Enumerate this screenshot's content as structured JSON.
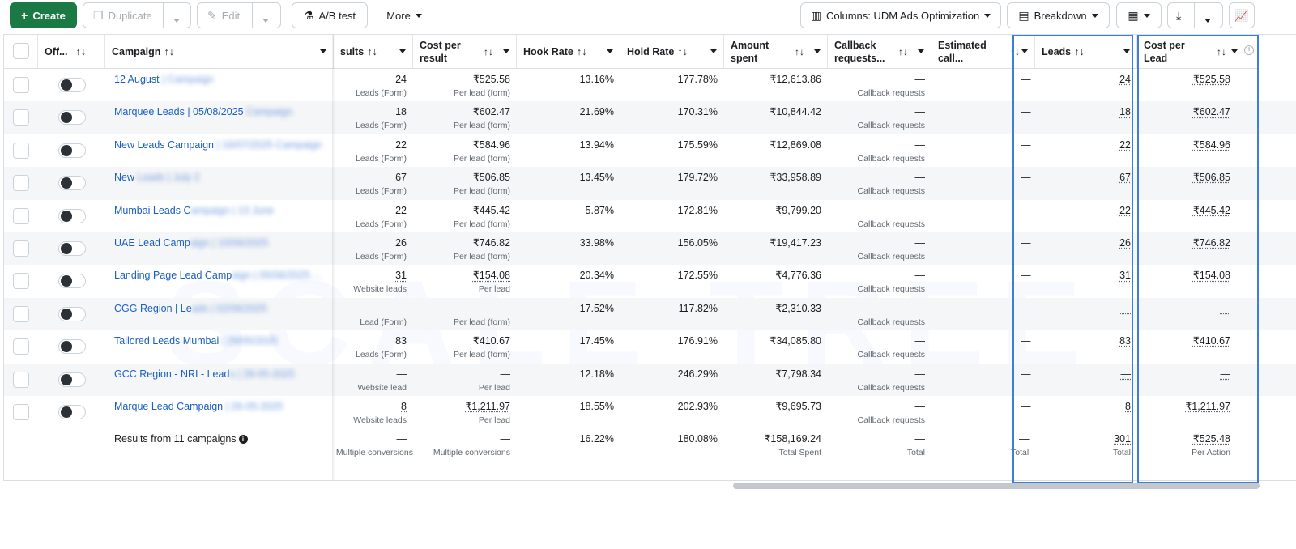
{
  "toolbar": {
    "create_label": "Create",
    "duplicate_label": "Duplicate",
    "edit_label": "Edit",
    "ab_test_label": "A/B test",
    "more_label": "More",
    "columns_label": "Columns: UDM Ads Optimization",
    "breakdown_label": "Breakdown"
  },
  "headers": {
    "off": "Off...",
    "campaign": "Campaign",
    "results": "sults",
    "cost_per_result": "Cost per result",
    "hook_rate": "Hook Rate",
    "hold_rate": "Hold Rate",
    "amount_spent": "Amount spent",
    "callback_requests": "Callback requests...",
    "estimated_call": "Estimated call...",
    "leads": "Leads",
    "cost_per_lead": "Cost per Lead"
  },
  "rows": [
    {
      "campaign_a": "12 August",
      "campaign_b": " | Campaign",
      "results": "24",
      "results_sub": "Leads (Form)",
      "cpr": "₹525.58",
      "cpr_sub": "Per lead (form)",
      "hook": "13.16%",
      "hold": "177.78%",
      "spent": "₹12,613.86",
      "callback": "—",
      "callback_sub": "Callback requests",
      "est": "—",
      "leads": "24",
      "cpl": "₹525.58"
    },
    {
      "campaign_a": "Marquee Leads | 05/08/2025",
      "campaign_b": " Campaign",
      "results": "18",
      "results_sub": "Leads (Form)",
      "cpr": "₹602.47",
      "cpr_sub": "Per lead (form)",
      "hook": "21.69%",
      "hold": "170.31%",
      "spent": "₹10,844.42",
      "callback": "—",
      "callback_sub": "Callback requests",
      "est": "—",
      "leads": "18",
      "cpl": "₹602.47"
    },
    {
      "campaign_a": "New Leads Campaign",
      "campaign_b": " | 16/07/2025 Campaign",
      "results": "22",
      "results_sub": "Leads (Form)",
      "cpr": "₹584.96",
      "cpr_sub": "Per lead (form)",
      "hook": "13.94%",
      "hold": "175.59%",
      "spent": "₹12,869.08",
      "callback": "—",
      "callback_sub": "Callback requests",
      "est": "—",
      "leads": "22",
      "cpl": "₹584.96"
    },
    {
      "campaign_a": "New",
      "campaign_b": " Leads | July 2",
      "results": "67",
      "results_sub": "Leads (Form)",
      "cpr": "₹506.85",
      "cpr_sub": "Per lead (form)",
      "hook": "13.45%",
      "hold": "179.72%",
      "spent": "₹33,958.89",
      "callback": "—",
      "callback_sub": "Callback requests",
      "est": "—",
      "leads": "67",
      "cpl": "₹506.85"
    },
    {
      "campaign_a": "Mumbai Leads C",
      "campaign_b": "ampaign | 13 June",
      "results": "22",
      "results_sub": "Leads (Form)",
      "cpr": "₹445.42",
      "cpr_sub": "Per lead (form)",
      "hook": "5.87%",
      "hold": "172.81%",
      "spent": "₹9,799.20",
      "callback": "—",
      "callback_sub": "Callback requests",
      "est": "—",
      "leads": "22",
      "cpl": "₹445.42"
    },
    {
      "campaign_a": "UAE Lead Camp",
      "campaign_b": "aign | 10/06/2025",
      "results": "26",
      "results_sub": "Leads (Form)",
      "cpr": "₹746.82",
      "cpr_sub": "Per lead (form)",
      "hook": "33.98%",
      "hold": "156.05%",
      "spent": "₹19,417.23",
      "callback": "—",
      "callback_sub": "Callback requests",
      "est": "—",
      "leads": "26",
      "cpl": "₹746.82"
    },
    {
      "campaign_a": "Landing Page Lead Camp",
      "campaign_b": "aign | 05/06/2025 ...",
      "results": "31",
      "results_sub": "Website leads",
      "cpr": "₹154.08",
      "cpr_sub": "Per lead",
      "hook": "20.34%",
      "hold": "172.55%",
      "spent": "₹4,776.36",
      "callback": "—",
      "callback_sub": "Callback requests",
      "est": "—",
      "leads": "31",
      "cpl": "₹154.08"
    },
    {
      "campaign_a": "CGG Region | Le",
      "campaign_b": "ads | 02/06/2025",
      "results": "—",
      "results_sub": "Lead (Form)",
      "cpr": "—",
      "cpr_sub": "Per lead (form)",
      "hook": "17.52%",
      "hold": "117.82%",
      "spent": "₹2,310.33",
      "callback": "—",
      "callback_sub": "Callback requests",
      "est": "—",
      "leads": "—",
      "cpl": "—"
    },
    {
      "campaign_a": "Tailored Leads Mumbai",
      "campaign_b": " | 29/05/2025",
      "results": "83",
      "results_sub": "Leads (Form)",
      "cpr": "₹410.67",
      "cpr_sub": "Per lead (form)",
      "hook": "17.45%",
      "hold": "176.91%",
      "spent": "₹34,085.80",
      "callback": "—",
      "callback_sub": "Callback requests",
      "est": "—",
      "leads": "83",
      "cpl": "₹410.67"
    },
    {
      "campaign_a": "GCC Region - NRI - Lead",
      "campaign_b": "s | 28-05-2025",
      "results": "—",
      "results_sub": "Website lead",
      "cpr": "—",
      "cpr_sub": "Per lead",
      "hook": "12.18%",
      "hold": "246.29%",
      "spent": "₹7,798.34",
      "callback": "—",
      "callback_sub": "Callback requests",
      "est": "—",
      "leads": "—",
      "cpl": "—"
    },
    {
      "campaign_a": "Marque Lead Campaign",
      "campaign_b": " | 26-05-2025",
      "results": "8",
      "results_sub": "Website leads",
      "cpr": "₹1,211.97",
      "cpr_sub": "Per lead",
      "hook": "18.55%",
      "hold": "202.93%",
      "spent": "₹9,695.73",
      "callback": "—",
      "callback_sub": "Callback requests",
      "est": "—",
      "leads": "8",
      "cpl": "₹1,211.97"
    }
  ],
  "footer": {
    "label": "Results from 11 campaigns",
    "results": "—",
    "results_sub": "Multiple conversions",
    "cpr": "—",
    "cpr_sub": "Multiple conversions",
    "hook": "16.22%",
    "hold": "180.08%",
    "spent": "₹158,169.24",
    "spent_sub": "Total Spent",
    "callback": "—",
    "callback_sub": "Total",
    "est": "—",
    "est_sub": "Total",
    "leads": "301",
    "leads_sub": "Total",
    "cpl": "₹525.48",
    "cpl_sub": "Per Action"
  },
  "sort_glyph": "↑↓",
  "watermark": "SCALE TREE"
}
